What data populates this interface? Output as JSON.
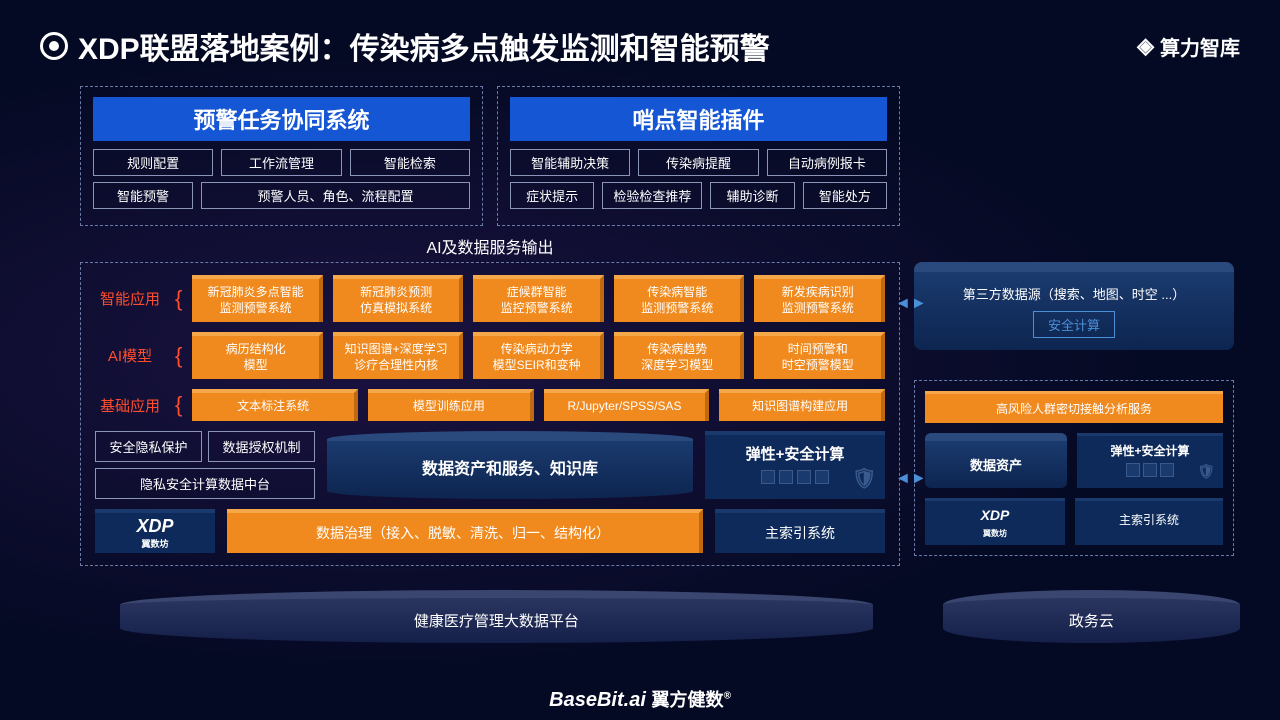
{
  "title": "XDP联盟落地案例：传染病多点触发监测和智能预警",
  "brand": "算力智库",
  "topPanels": {
    "left": {
      "title": "预警任务协同系统",
      "row1": [
        "规则配置",
        "工作流管理",
        "智能检索"
      ],
      "row2": [
        "智能预警",
        "预警人员、角色、流程配置"
      ]
    },
    "right": {
      "title": "哨点智能插件",
      "row1": [
        "智能辅助决策",
        "传染病提醒",
        "自动病例报卡"
      ],
      "row2": [
        "症状提示",
        "检验检查推荐",
        "辅助诊断",
        "智能处方"
      ]
    }
  },
  "sectionLabel": "AI及数据服务输出",
  "services": {
    "row1": {
      "label": "智能应用",
      "items": [
        "新冠肺炎多点智能\n监测预警系统",
        "新冠肺炎预测\n仿真模拟系统",
        "症候群智能\n监控预警系统",
        "传染病智能\n监测预警系统",
        "新发疾病识别\n监测预警系统"
      ]
    },
    "row2": {
      "label": "AI模型",
      "items": [
        "病历结构化\n模型",
        "知识图谱+深度学习\n诊疗合理性内核",
        "传染病动力学\n模型SEIR和变种",
        "传染病趋势\n深度学习模型",
        "时间预警和\n时空预警模型"
      ]
    },
    "row3": {
      "label": "基础应用",
      "items": [
        "文本标注系统",
        "模型训练应用",
        "R/Jupyter/SPSS/SAS",
        "知识图谱构建应用"
      ]
    }
  },
  "lower": {
    "privacy": "安全隐私保护",
    "auth": "数据授权机制",
    "platform": "隐私安全计算数据中台",
    "cyl": "数据资产和服务、知识库",
    "elastic": "弹性+安全计算"
  },
  "xdpRow": {
    "logo": "XDP",
    "logoSub": "翼数坊",
    "gov": "数据治理（接入、脱敏、清洗、归一、结构化）",
    "idx": "主索引系统"
  },
  "right": {
    "src": "第三方数据源（搜索、地图、时空 ...）",
    "safe": "安全计算",
    "svc": "高风险人群密切接触分析服务",
    "asset": "数据资产",
    "elastic": "弹性+安全计算",
    "xdp": "XDP",
    "xdpSub": "翼数坊",
    "idx": "主索引系统"
  },
  "bottom": {
    "left": "健康医疗管理大数据平台",
    "right": "政务云"
  },
  "footer": {
    "en": "BaseBit.ai",
    "cn": "翼方健数"
  },
  "colors": {
    "orange": "#f08a1e",
    "blue": "#1456d4",
    "darkblue": "#0d2a5a",
    "red": "#ff4d2e",
    "bg": "#050a24"
  }
}
